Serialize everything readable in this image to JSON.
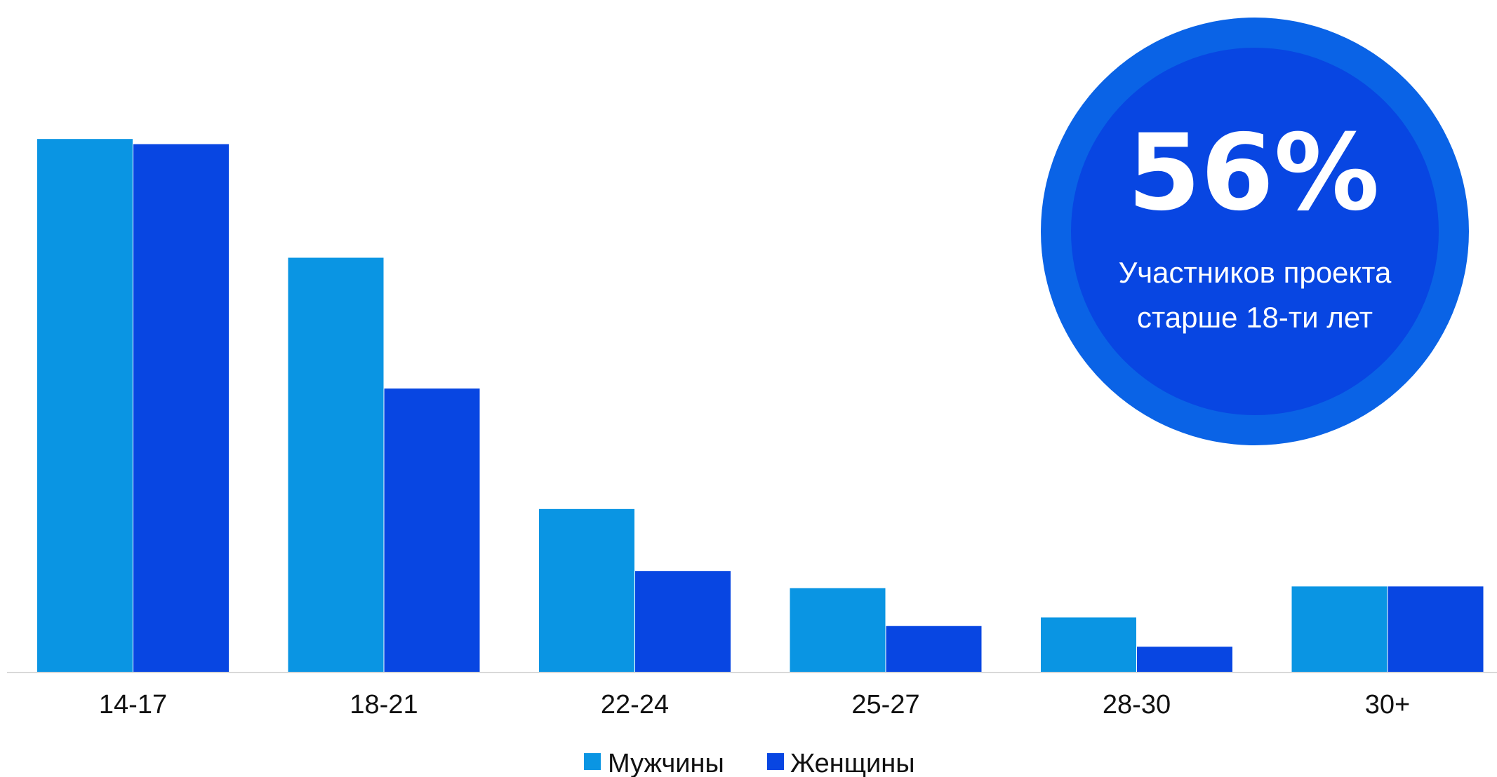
{
  "chart_data": {
    "type": "bar",
    "categories": [
      "14-17",
      "18-21",
      "22-24",
      "25-27",
      "28-30",
      "30+"
    ],
    "series": [
      {
        "name": "Мужчины",
        "values": [
          31,
          24.1,
          9.5,
          4.9,
          3.2,
          5.0
        ],
        "color": "#0a95e3"
      },
      {
        "name": "Женщины",
        "values": [
          30.7,
          16.5,
          5.9,
          2.7,
          1.5,
          5.0
        ],
        "color": "#0846e2"
      }
    ],
    "ylim": [
      0,
      35
    ],
    "grid": false,
    "legend_position": "bottom-center",
    "title": "",
    "xlabel": "",
    "ylabel": ""
  },
  "badge": {
    "value": "56%",
    "line1": "Участников проекта",
    "line2": "старше 18-ти лет",
    "outer_color": "#0a63e6",
    "inner_color": "#0846e2"
  },
  "colors": {
    "axis": "#d9d9d9",
    "text": "#111111"
  }
}
